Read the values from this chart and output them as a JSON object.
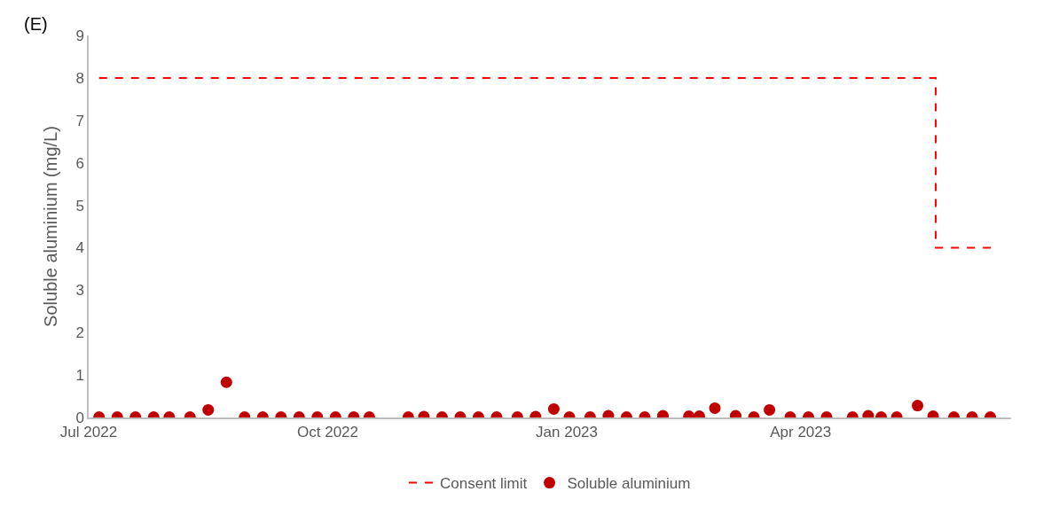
{
  "chart_data": {
    "type": "scatter",
    "ylabel": "Soluble aluminium (mg/L)",
    "xlim": [
      "2022-07-01",
      "2023-06-21"
    ],
    "xticks": [
      {
        "value": "2022-07-01",
        "label": "Jul 2022"
      },
      {
        "value": "2022-10-01",
        "label": "Oct 2022"
      },
      {
        "value": "2023-01-01",
        "label": "Jan 2023"
      },
      {
        "value": "2023-04-01",
        "label": "Apr 2023"
      }
    ],
    "ylim": [
      0,
      9
    ],
    "yticks": [
      0,
      1,
      2,
      3,
      4,
      5,
      6,
      7,
      8,
      9
    ],
    "grid": false,
    "legend": "bottom",
    "annotations": [
      "(E)"
    ],
    "series": [
      {
        "name": "Consent limit",
        "type": "step",
        "color": "#ff0000",
        "line_style": "dashed",
        "marker": "none",
        "x": [
          "2022-07-05",
          "2023-05-23",
          "2023-06-14"
        ],
        "values": [
          8,
          4,
          4
        ]
      },
      {
        "name": "Soluble aluminium",
        "color": "#c00000",
        "marker": "circle",
        "x": [
          "2022-07-05",
          "2022-07-12",
          "2022-07-19",
          "2022-07-26",
          "2022-08-01",
          "2022-08-09",
          "2022-08-16",
          "2022-08-23",
          "2022-08-30",
          "2022-09-06",
          "2022-09-13",
          "2022-09-20",
          "2022-09-27",
          "2022-10-04",
          "2022-10-11",
          "2022-10-17",
          "2022-11-01",
          "2022-11-07",
          "2022-11-14",
          "2022-11-21",
          "2022-11-28",
          "2022-12-05",
          "2022-12-13",
          "2022-12-20",
          "2022-12-27",
          "2023-01-02",
          "2023-01-10",
          "2023-01-17",
          "2023-01-24",
          "2023-01-31",
          "2023-02-07",
          "2023-02-17",
          "2023-02-21",
          "2023-02-27",
          "2023-03-07",
          "2023-03-14",
          "2023-03-20",
          "2023-03-28",
          "2023-04-04",
          "2023-04-11",
          "2023-04-21",
          "2023-04-27",
          "2023-05-02",
          "2023-05-08",
          "2023-05-16",
          "2023-05-22",
          "2023-05-30",
          "2023-06-06",
          "2023-06-13"
        ],
        "values": [
          0.01,
          0.01,
          0.01,
          0.01,
          0.01,
          0.01,
          0.18,
          0.83,
          0.01,
          0.01,
          0.01,
          0.01,
          0.01,
          0.01,
          0.01,
          0.01,
          0.01,
          0.02,
          0.01,
          0.01,
          0.01,
          0.01,
          0.01,
          0.02,
          0.2,
          0.01,
          0.01,
          0.04,
          0.01,
          0.01,
          0.04,
          0.03,
          0.03,
          0.22,
          0.04,
          0.01,
          0.18,
          0.01,
          0.01,
          0.01,
          0.01,
          0.04,
          0.01,
          0.01,
          0.28,
          0.03,
          0.01,
          0.01,
          0.01
        ]
      }
    ]
  }
}
